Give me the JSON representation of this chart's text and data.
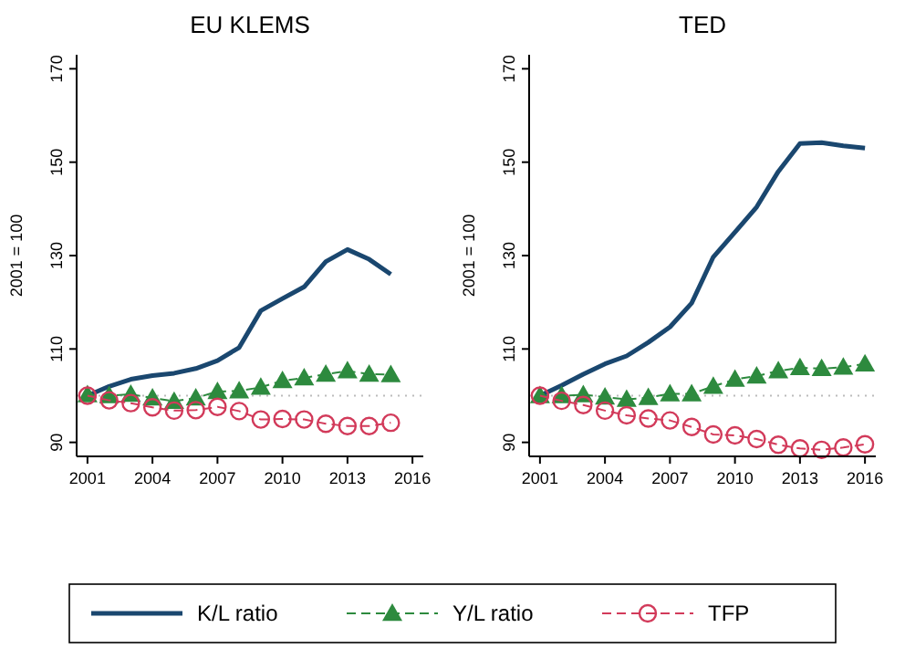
{
  "chart_data": [
    {
      "type": "line",
      "title": "EU KLEMS",
      "ylabel": "2001 = 100",
      "x": [
        2001,
        2002,
        2003,
        2004,
        2005,
        2006,
        2007,
        2008,
        2009,
        2010,
        2011,
        2012,
        2013,
        2014,
        2015
      ],
      "xlim": [
        2000.5,
        2016.5
      ],
      "xticks": [
        2001,
        2004,
        2007,
        2010,
        2013,
        2016
      ],
      "ylim": [
        87,
        173
      ],
      "yticks": [
        90,
        110,
        130,
        150,
        170
      ],
      "grid": false,
      "legend": "bottom",
      "ref_lines": [
        {
          "axis": "y",
          "value": 100,
          "color": "#bbbbbb",
          "line_style": "dotted"
        }
      ],
      "series": [
        {
          "name": "K/L ratio",
          "color": "#1a476f",
          "marker": "none",
          "line_style": "solid",
          "values": [
            100,
            102,
            103.5,
            104.3,
            104.8,
            105.8,
            107.5,
            110.3,
            118.2,
            120.8,
            123.3,
            128.7,
            131.3,
            129.2,
            126
          ]
        },
        {
          "name": "Y/L ratio",
          "color": "#2d8a3e",
          "marker": "triangle",
          "line_style": "dashed",
          "values": [
            100.2,
            100,
            100.3,
            99.5,
            98.8,
            99.5,
            100.9,
            101,
            101.8,
            103.2,
            103.8,
            104.6,
            105.3,
            104.6,
            104.5
          ]
        },
        {
          "name": "TFP",
          "color": "#d23a5a",
          "marker": "circle",
          "line_style": "dashed",
          "values": [
            100,
            99,
            98.4,
            97.5,
            96.8,
            96.9,
            97.6,
            96.7,
            94.9,
            95,
            94.9,
            94,
            93.5,
            93.5,
            94.2
          ]
        }
      ]
    },
    {
      "type": "line",
      "title": "TED",
      "ylabel": "2001 = 100",
      "x": [
        2001,
        2002,
        2003,
        2004,
        2005,
        2006,
        2007,
        2008,
        2009,
        2010,
        2011,
        2012,
        2013,
        2014,
        2015,
        2016
      ],
      "xlim": [
        2000.5,
        2016.5
      ],
      "xticks": [
        2001,
        2004,
        2007,
        2010,
        2013,
        2016
      ],
      "ylim": [
        87,
        173
      ],
      "yticks": [
        90,
        110,
        130,
        150,
        170
      ],
      "grid": false,
      "legend": "bottom",
      "ref_lines": [
        {
          "axis": "y",
          "value": 100,
          "color": "#bbbbbb",
          "line_style": "dotted"
        }
      ],
      "series": [
        {
          "name": "K/L ratio",
          "color": "#1a476f",
          "marker": "none",
          "line_style": "solid",
          "values": [
            100,
            102.2,
            104.6,
            106.8,
            108.5,
            111.4,
            114.7,
            119.8,
            129.7,
            135,
            140.4,
            148,
            154,
            154.2,
            153.5,
            153
          ]
        },
        {
          "name": "Y/L ratio",
          "color": "#2d8a3e",
          "marker": "triangle",
          "line_style": "dashed",
          "values": [
            100,
            100,
            100.2,
            99.7,
            99.2,
            99.6,
            100.4,
            100.4,
            102,
            103.5,
            104.2,
            105.3,
            106,
            105.8,
            106.1,
            106.8
          ]
        },
        {
          "name": "TFP",
          "color": "#d23a5a",
          "marker": "circle",
          "line_style": "dashed",
          "values": [
            100,
            98.9,
            98,
            96.8,
            95.8,
            95.1,
            94.7,
            93.3,
            91.7,
            91.5,
            90.7,
            89.5,
            88.7,
            88.4,
            88.9,
            89.6
          ]
        }
      ]
    }
  ]
}
